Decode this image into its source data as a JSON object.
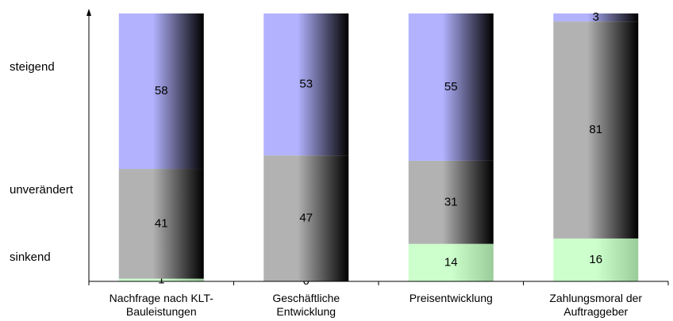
{
  "chart_data": {
    "type": "stacked_bar",
    "categories": [
      "Nachfrage nach KLT-Bauleistungen",
      "Geschäftliche Entwicklung",
      "Preisentwicklung",
      "Zahlungsmoral der Auftraggeber"
    ],
    "series": [
      {
        "name": "sinkend",
        "color": "#ccffcc",
        "values": [
          1,
          0,
          14,
          16
        ]
      },
      {
        "name": "unverändert",
        "color": "#b2b2b2",
        "values": [
          41,
          47,
          31,
          81
        ]
      },
      {
        "name": "steigend",
        "color": "#b2b2ff",
        "values": [
          58,
          53,
          55,
          3
        ]
      }
    ],
    "ylim": [
      0,
      100
    ]
  }
}
